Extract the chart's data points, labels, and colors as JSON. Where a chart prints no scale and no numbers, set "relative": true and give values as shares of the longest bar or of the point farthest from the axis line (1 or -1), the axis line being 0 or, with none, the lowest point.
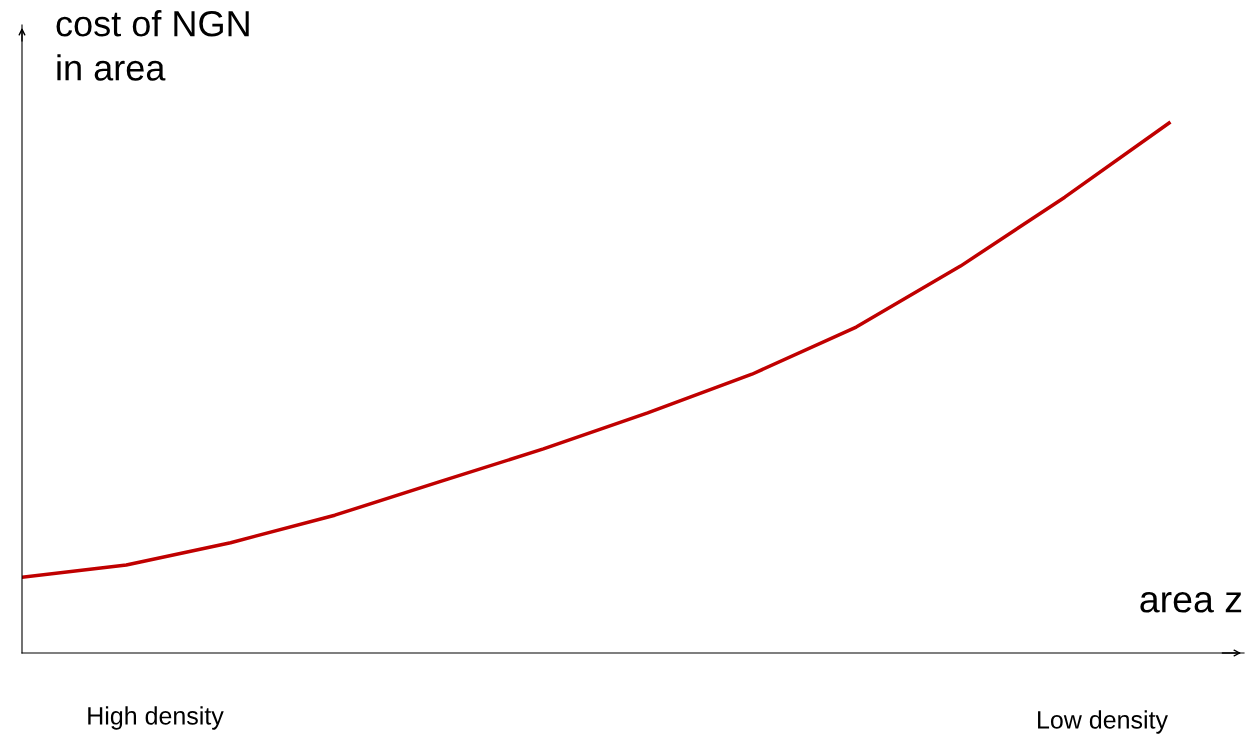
{
  "chart_data": {
    "type": "line",
    "relative": true,
    "ylabel": "cost of NGN\nin area",
    "xlabel": "area z",
    "categories": [
      null,
      null,
      null,
      null,
      null,
      null,
      null,
      null,
      null,
      null,
      null,
      null
    ],
    "series": [
      {
        "color": "#c00000",
        "values": [
          0.143,
          0.166,
          0.208,
          0.26,
          0.323,
          0.385,
          0.453,
          0.526,
          0.615,
          0.73,
          0.86,
          1.0
        ]
      }
    ],
    "annotations": [
      "High density",
      "Low density"
    ],
    "marker": "none",
    "line_style": "solid"
  }
}
